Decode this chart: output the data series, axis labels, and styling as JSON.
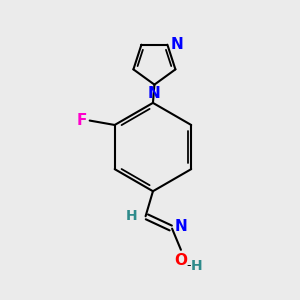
{
  "bg_color": "#ebebeb",
  "bond_color": "#000000",
  "bond_width": 1.5,
  "atom_colors": {
    "N": "#0000ff",
    "O": "#ff0000",
    "F": "#ff00cc",
    "H": "#2e8b8b",
    "C": "#000000"
  },
  "font_size_atoms": 10,
  "figsize": [
    3.0,
    3.0
  ],
  "dpi": 100
}
